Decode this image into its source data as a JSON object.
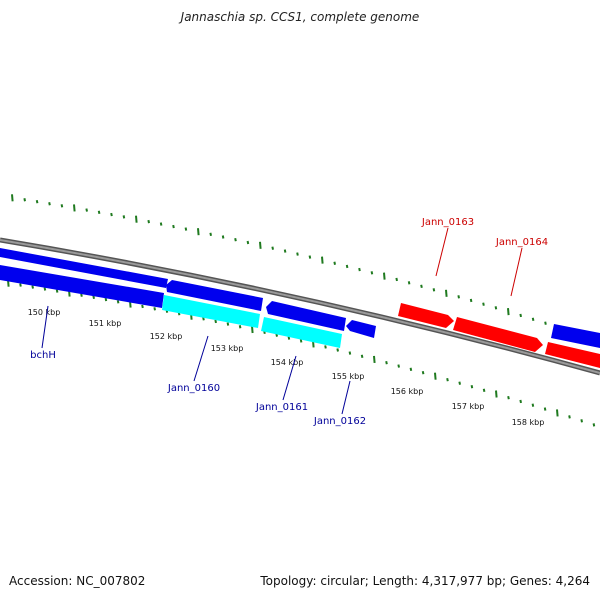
{
  "title": "Jannaschia sp. CCS1, complete genome",
  "footer": {
    "accession": "Accession: NC_007802",
    "stats": "Topology: circular; Length: 4,317,977 bp; Genes: 4,264"
  },
  "colors": {
    "backbone": "#777777",
    "tick": "#1f7a1f",
    "forward": "#ff0000",
    "reverse": "#0000ee",
    "highlight": "#00ffff",
    "label_forward": "#cc0000",
    "label_reverse": "#000099"
  },
  "scale_labels": [
    "150 kbp",
    "151 kbp",
    "152 kbp",
    "153 kbp",
    "154 kbp",
    "155 kbp",
    "156 kbp",
    "157 kbp",
    "158 kbp"
  ],
  "genes": [
    {
      "name": "bchH",
      "strand": "reverse",
      "color": "reverse"
    },
    {
      "name": "Jann_0160",
      "strand": "reverse",
      "color": "highlight"
    },
    {
      "name": "Jann_0161",
      "strand": "reverse",
      "color": "highlight"
    },
    {
      "name": "Jann_0162",
      "strand": "reverse",
      "color": "reverse"
    },
    {
      "name": "Jann_0163",
      "strand": "forward",
      "color": "forward"
    },
    {
      "name": "Jann_0164",
      "strand": "forward",
      "color": "forward"
    }
  ]
}
